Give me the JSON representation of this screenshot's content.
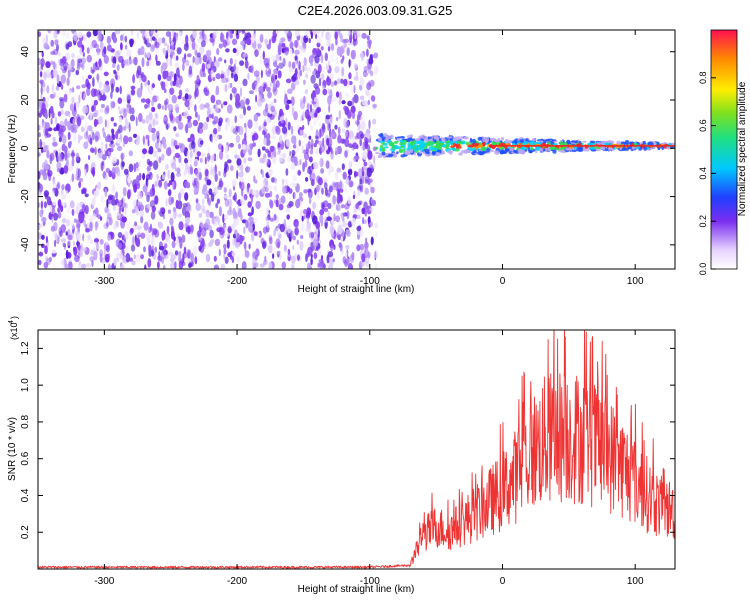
{
  "title": "C2E4.2026.003.09.31.G25",
  "colors": {
    "spectro": "#7a2ef0",
    "signal": "#33dd55",
    "peak": "#ee2222",
    "line": "#ee3333",
    "axis": "#000000"
  },
  "chart_data": [
    {
      "type": "heatmap",
      "name": "spectrogram",
      "xlabel": "Height of straight line (km)",
      "ylabel": "Frequency (Hz)",
      "xlim": [
        -350,
        130
      ],
      "ylim": [
        -50,
        49
      ],
      "xticks": [
        -300,
        -200,
        -100,
        0,
        100
      ],
      "yticks": [
        -40,
        -20,
        0,
        20,
        40
      ],
      "noise_region_x": [
        -350,
        -95
      ],
      "signal_band_x": [
        -95,
        130
      ],
      "signal_center_hz": 1,
      "colorbar": {
        "label": "Normalized spectral amplitude",
        "range": [
          0,
          1
        ],
        "ticks": [
          0.0,
          0.2,
          0.4,
          0.6,
          0.8
        ]
      }
    },
    {
      "type": "line",
      "name": "snr",
      "xlabel": "Height of straight line (km)",
      "ylabel": "SNR (10 * v/v)",
      "scale_label": "(x10",
      "scale_exp": "4",
      "xlim": [
        -350,
        130
      ],
      "ylim": [
        0,
        1.3
      ],
      "xticks": [
        -300,
        -200,
        -100,
        0,
        100
      ],
      "yticks": [
        0.2,
        0.4,
        0.6,
        0.8,
        1.0,
        1.2
      ],
      "envelope_x": [
        -350,
        -100,
        -70,
        -60,
        -50,
        -40,
        -30,
        -20,
        -10,
        0,
        10,
        20,
        30,
        40,
        50,
        60,
        70,
        80,
        90,
        100,
        110,
        120,
        130
      ],
      "envelope_y": [
        0.01,
        0.01,
        0.02,
        0.25,
        0.32,
        0.28,
        0.35,
        0.42,
        0.5,
        0.58,
        0.7,
        0.85,
        0.95,
        1.0,
        1.0,
        0.98,
        0.93,
        0.86,
        0.77,
        0.66,
        0.55,
        0.46,
        0.44
      ]
    }
  ]
}
